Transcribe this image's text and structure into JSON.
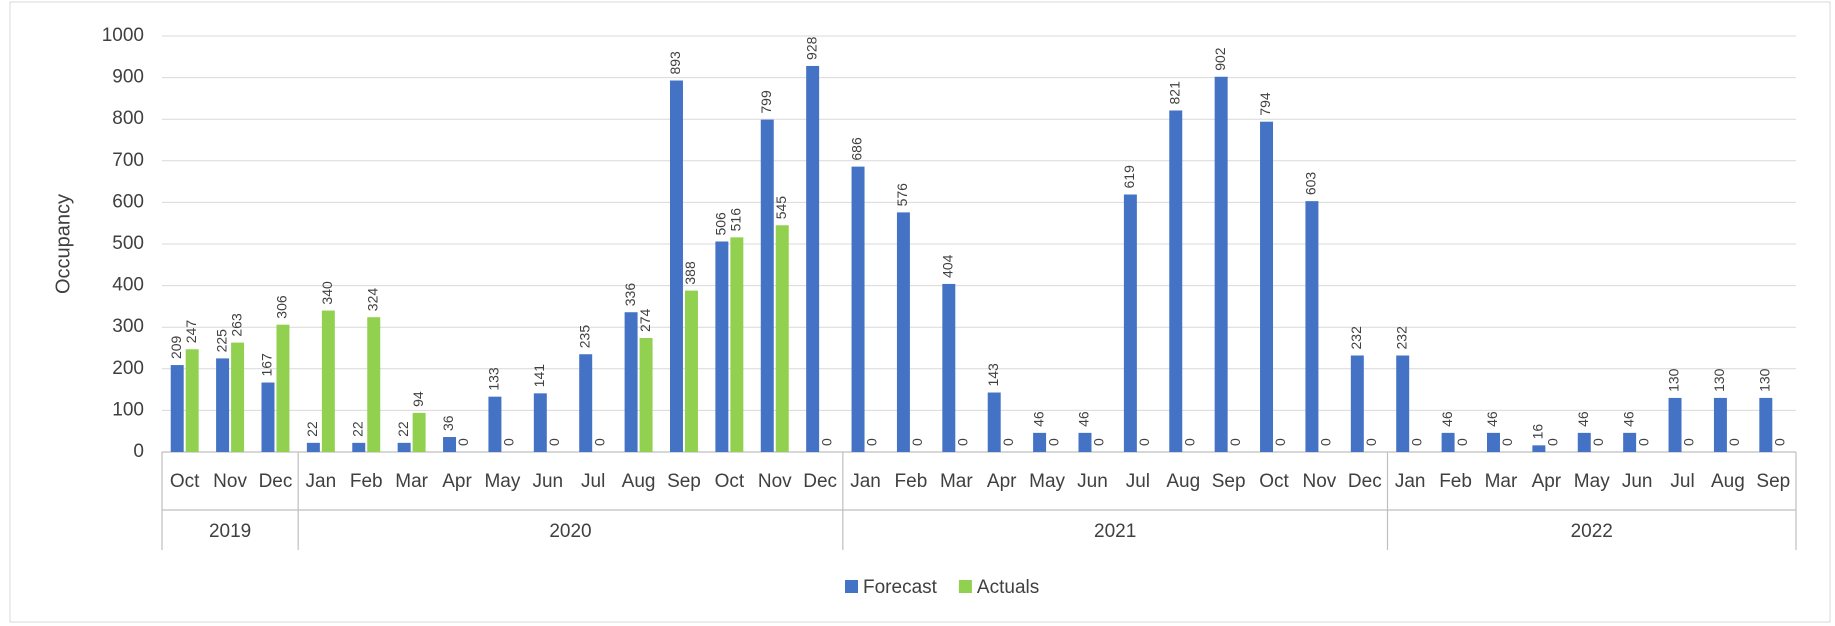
{
  "chart_data": {
    "type": "bar",
    "y_label": "Occupancy",
    "ylim": [
      0,
      1000
    ],
    "yticks": [
      0,
      100,
      200,
      300,
      400,
      500,
      600,
      700,
      800,
      900,
      1000
    ],
    "grid": true,
    "legend": "bottom",
    "category_groups": [
      {
        "label": "2019",
        "categories": [
          "Oct",
          "Nov",
          "Dec"
        ]
      },
      {
        "label": "2020",
        "categories": [
          "Jan",
          "Feb",
          "Mar",
          "Apr",
          "May",
          "Jun",
          "Jul",
          "Aug",
          "Sep",
          "Oct",
          "Nov",
          "Dec"
        ]
      },
      {
        "label": "2021",
        "categories": [
          "Jan",
          "Feb",
          "Mar",
          "Apr",
          "May",
          "Jun",
          "Jul",
          "Aug",
          "Sep",
          "Oct",
          "Nov",
          "Dec"
        ]
      },
      {
        "label": "2022",
        "categories": [
          "Jan",
          "Feb",
          "Mar",
          "Apr",
          "May",
          "Jun",
          "Jul",
          "Aug",
          "Sep"
        ]
      }
    ],
    "series": [
      {
        "name": "Forecast",
        "color": "#4472c4",
        "values": [
          209,
          225,
          167,
          22,
          22,
          22,
          36,
          133,
          141,
          235,
          336,
          893,
          506,
          799,
          928,
          686,
          576,
          404,
          143,
          46,
          46,
          619,
          821,
          902,
          794,
          603,
          232,
          232,
          46,
          46,
          16,
          46,
          46,
          130,
          130,
          130
        ]
      },
      {
        "name": "Actuals",
        "color": "#92d050",
        "values": [
          247,
          263,
          306,
          340,
          324,
          94,
          0,
          0,
          0,
          0,
          274,
          388,
          516,
          545,
          0,
          0,
          0,
          0,
          0,
          0,
          0,
          0,
          0,
          0,
          0,
          0,
          0,
          0,
          0,
          0,
          0,
          0,
          0,
          0,
          0,
          0
        ]
      }
    ]
  }
}
